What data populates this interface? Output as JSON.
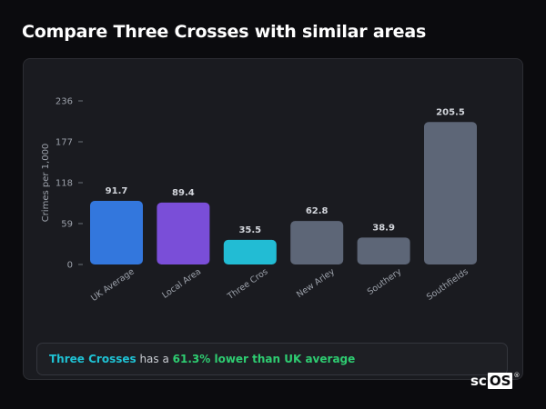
{
  "page": {
    "title": "Compare Three Crosses with similar areas"
  },
  "chart_data": {
    "type": "bar",
    "categories": [
      "UK Average",
      "Local Area",
      "Three Crosses",
      "New Arley",
      "Southery",
      "Southfields"
    ],
    "category_labels": [
      "UK Average",
      "Local Area",
      "Three Cros",
      "New Arley",
      "Southery",
      "Southfields"
    ],
    "values": [
      91.7,
      89.4,
      35.5,
      62.8,
      38.9,
      205.5
    ],
    "value_labels": [
      "91.7",
      "89.4",
      "35.5",
      "62.8",
      "38.9",
      "205.5"
    ],
    "colors": [
      "#3377dd",
      "#7a4ed8",
      "#22bcd4",
      "#5d6677",
      "#5d6677",
      "#5d6677"
    ],
    "ylabel": "Crimes per 1,000",
    "xlabel": "",
    "yticks": [
      0,
      59,
      118,
      177,
      236
    ],
    "ylim": [
      0,
      236
    ],
    "grid": false,
    "legend": "none"
  },
  "callout": {
    "place": "Three Crosses",
    "middle": " has a ",
    "delta": "61.3% lower than UK average"
  },
  "logo": {
    "prefix": "sc",
    "boxed": "OS",
    "mark": "®"
  }
}
